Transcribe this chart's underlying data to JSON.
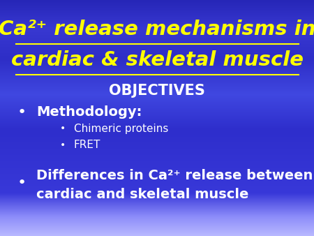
{
  "title_line1": "Ca²⁺ release mechanisms in",
  "title_line2": "cardiac & skeletal muscle",
  "title_color": "#FFFF00",
  "title_fontsize": 21,
  "objectives_text": "OBJECTIVES",
  "objectives_color": "#FFFFFF",
  "objectives_fontsize": 15,
  "bullet1_text": "Methodology:",
  "bullet1_color": "#FFFFFF",
  "bullet1_fontsize": 14,
  "sub_bullet1": "Chimeric proteins",
  "sub_bullet2": "FRET",
  "sub_bullet_color": "#FFFFFF",
  "sub_bullet_fontsize": 11,
  "bullet2_line1": "Differences in Ca²⁺ release between",
  "bullet2_line2": "cardiac and skeletal muscle",
  "bullet2_color": "#FFFFFF",
  "bullet2_fontsize": 14,
  "figsize": [
    4.5,
    3.38
  ],
  "dpi": 100
}
